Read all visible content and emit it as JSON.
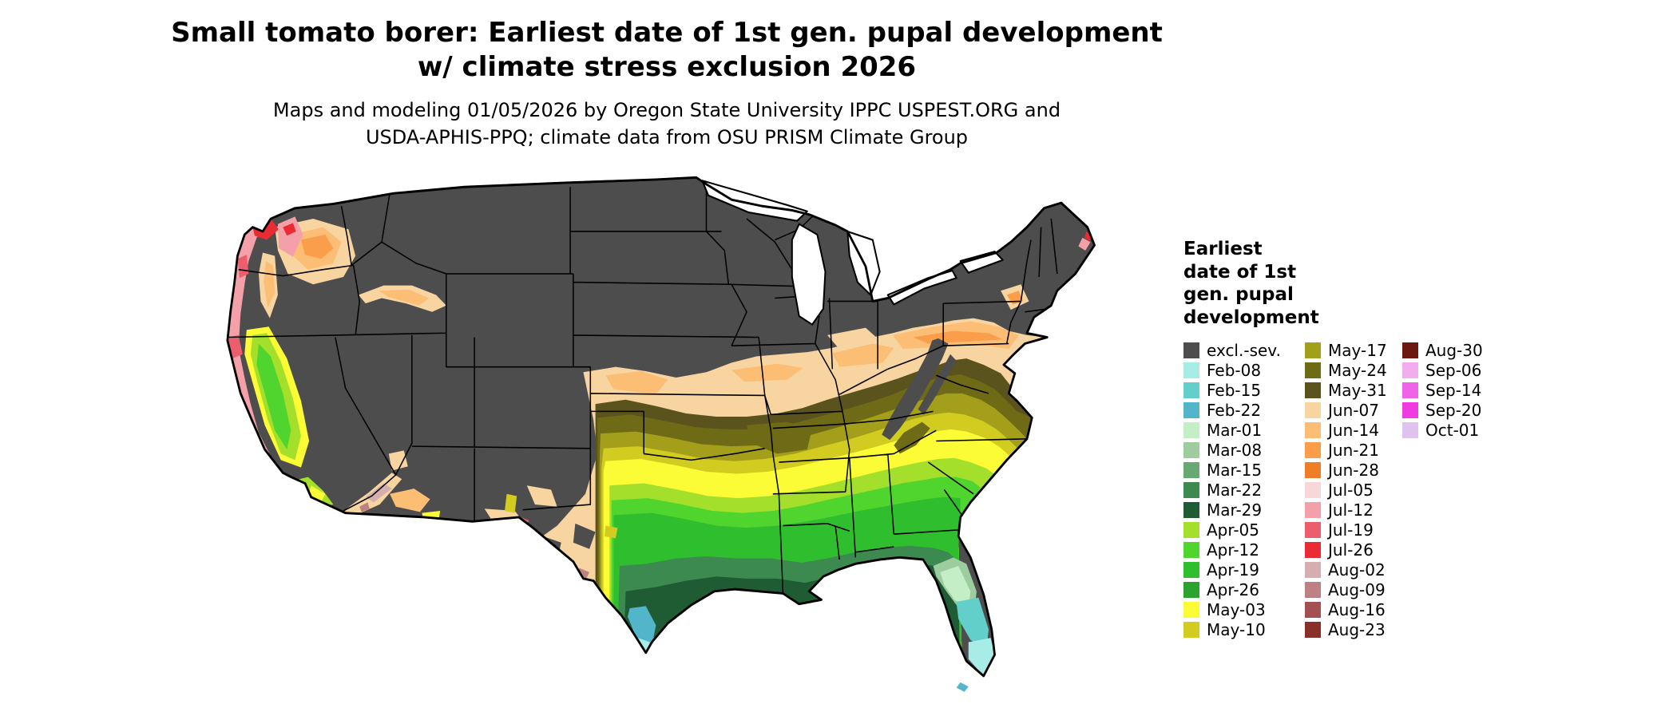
{
  "header": {
    "title_line1": "Small tomato borer: Earliest date of 1st gen. pupal development",
    "title_line2": "w/ climate stress exclusion 2026",
    "subtitle_line1": "Maps and modeling 01/05/2026 by Oregon State University IPPC USPEST.ORG and",
    "subtitle_line2": "USDA-APHIS-PPQ; climate data from OSU PRISM Climate Group"
  },
  "legend": {
    "title": "Earliest\ndate of 1st\ngen. pupal\ndevelopment",
    "columns": [
      [
        {
          "label": "excl.-sev.",
          "color": "#4d4d4d"
        },
        {
          "label": "Feb-08",
          "color": "#a8ece8"
        },
        {
          "label": "Feb-15",
          "color": "#62cfca"
        },
        {
          "label": "Feb-22",
          "color": "#52b5c9"
        },
        {
          "label": "Mar-01",
          "color": "#c4eec6"
        },
        {
          "label": "Mar-08",
          "color": "#9dcc9f"
        },
        {
          "label": "Mar-15",
          "color": "#68a873"
        },
        {
          "label": "Mar-22",
          "color": "#3c8a50"
        },
        {
          "label": "Mar-29",
          "color": "#1f5c33"
        },
        {
          "label": "Apr-05",
          "color": "#a4e02b"
        },
        {
          "label": "Apr-12",
          "color": "#50d42e"
        },
        {
          "label": "Apr-19",
          "color": "#2fbe2d"
        },
        {
          "label": "Apr-26",
          "color": "#2ca32f"
        },
        {
          "label": "May-03",
          "color": "#fbfb36"
        },
        {
          "label": "May-10",
          "color": "#d2cb20"
        }
      ],
      [
        {
          "label": "May-17",
          "color": "#a49f1b"
        },
        {
          "label": "May-24",
          "color": "#6f6a15"
        },
        {
          "label": "May-31",
          "color": "#5b531d"
        },
        {
          "label": "Jun-07",
          "color": "#f7d4a0"
        },
        {
          "label": "Jun-14",
          "color": "#fcbd75"
        },
        {
          "label": "Jun-21",
          "color": "#fb9e4b"
        },
        {
          "label": "Jun-28",
          "color": "#f07e29"
        },
        {
          "label": "Jul-05",
          "color": "#f8d7d9"
        },
        {
          "label": "Jul-12",
          "color": "#f3a0a8"
        },
        {
          "label": "Jul-19",
          "color": "#ec5e6c"
        },
        {
          "label": "Jul-26",
          "color": "#ea2b33"
        },
        {
          "label": "Aug-02",
          "color": "#d5aeb0"
        },
        {
          "label": "Aug-09",
          "color": "#bd8184"
        },
        {
          "label": "Aug-16",
          "color": "#a45052"
        },
        {
          "label": "Aug-23",
          "color": "#8b2f2b"
        }
      ],
      [
        {
          "label": "Aug-30",
          "color": "#6d1711"
        },
        {
          "label": "Sep-06",
          "color": "#f1adf0"
        },
        {
          "label": "Sep-14",
          "color": "#ef63e9"
        },
        {
          "label": "Sep-20",
          "color": "#ee3ce1"
        },
        {
          "label": "Oct-01",
          "color": "#dfc3ee"
        }
      ]
    ]
  }
}
